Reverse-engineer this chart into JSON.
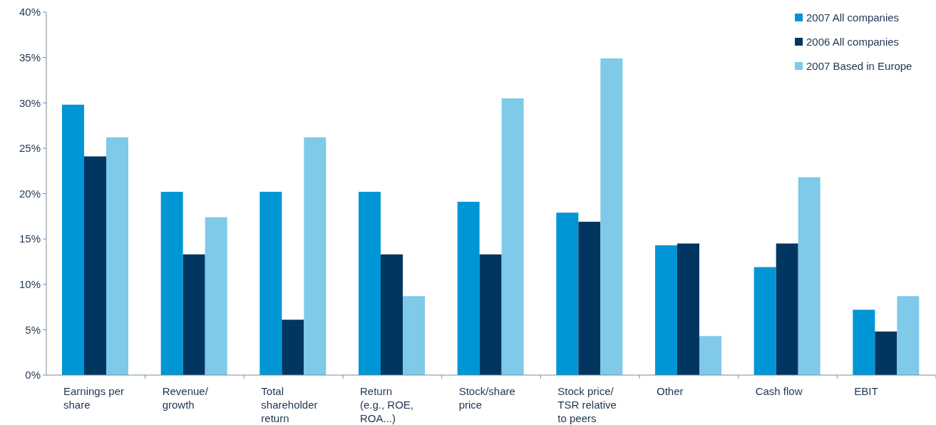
{
  "chart_data": {
    "type": "bar",
    "categories": [
      "Earnings per share",
      "Revenue/growth",
      "Total shareholder return",
      "Return (e.g., ROE, ROA...)",
      "Stock/share price",
      "Stock price/TSR relative to peers",
      "Other",
      "Cash flow",
      "EBIT"
    ],
    "series": [
      {
        "name": "2007 All companies",
        "color": "#0096d6",
        "values": [
          29.8,
          20.2,
          20.2,
          20.2,
          19.1,
          17.9,
          14.3,
          11.9,
          7.2
        ]
      },
      {
        "name": "2006 All companies",
        "color": "#003660",
        "values": [
          24.1,
          13.3,
          6.1,
          13.3,
          13.3,
          16.9,
          14.5,
          14.5,
          4.8
        ]
      },
      {
        "name": "2007 Based in Europe",
        "color": "#7fc9e9",
        "values": [
          26.2,
          17.4,
          26.2,
          8.7,
          30.5,
          34.9,
          4.3,
          21.8,
          8.7
        ]
      }
    ],
    "ylim": [
      0,
      40
    ],
    "yticks": [
      {
        "value": 0,
        "label": "0%"
      },
      {
        "value": 5,
        "label": "5%"
      },
      {
        "value": 10,
        "label": "10%"
      },
      {
        "value": 15,
        "label": "15%"
      },
      {
        "value": 20,
        "label": "20%"
      },
      {
        "value": 25,
        "label": "25%"
      },
      {
        "value": 30,
        "label": "30%"
      },
      {
        "value": 35,
        "label": "35%"
      },
      {
        "value": 40,
        "label": "40%"
      }
    ],
    "legend": "top right",
    "grid": false
  }
}
